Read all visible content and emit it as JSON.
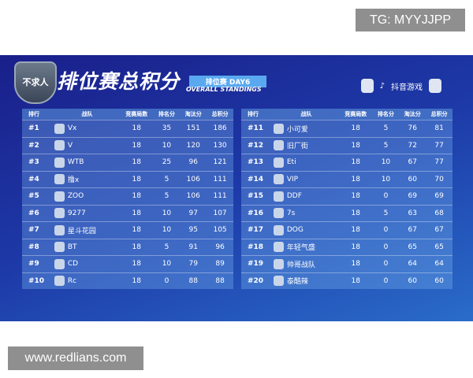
{
  "watermark_top": "TG: MYYJJPP",
  "watermark_bottom": "www.redlians.com",
  "header": {
    "logo_text": "不求人",
    "title": "排位赛总积分",
    "day_label": "排位赛 DAY6",
    "subtitle": "OVERALL STANDINGS",
    "sponsor": "抖音游戏"
  },
  "columns": [
    "排行",
    "战队",
    "竞赛局数",
    "排名分",
    "淘汰分",
    "总积分"
  ],
  "left": [
    [
      "#1",
      "Vx",
      "18",
      "35",
      "151",
      "186"
    ],
    [
      "#2",
      "V",
      "18",
      "10",
      "120",
      "130"
    ],
    [
      "#3",
      "WTB",
      "18",
      "25",
      "96",
      "121"
    ],
    [
      "#4",
      "撸x",
      "18",
      "5",
      "106",
      "111"
    ],
    [
      "#5",
      "ZOO",
      "18",
      "5",
      "106",
      "111"
    ],
    [
      "#6",
      "9277",
      "18",
      "10",
      "97",
      "107"
    ],
    [
      "#7",
      "星斗花园",
      "18",
      "10",
      "95",
      "105"
    ],
    [
      "#8",
      "BT",
      "18",
      "5",
      "91",
      "96"
    ],
    [
      "#9",
      "CD",
      "18",
      "10",
      "79",
      "89"
    ],
    [
      "#10",
      "Rc",
      "18",
      "0",
      "88",
      "88"
    ]
  ],
  "right": [
    [
      "#11",
      "小可爱",
      "18",
      "5",
      "76",
      "81"
    ],
    [
      "#12",
      "旧厂街",
      "18",
      "5",
      "72",
      "77"
    ],
    [
      "#13",
      "Eti",
      "18",
      "10",
      "67",
      "77"
    ],
    [
      "#14",
      "VIP",
      "18",
      "10",
      "60",
      "70"
    ],
    [
      "#15",
      "DDF",
      "18",
      "0",
      "69",
      "69"
    ],
    [
      "#16",
      "7s",
      "18",
      "5",
      "63",
      "68"
    ],
    [
      "#17",
      "DOG",
      "18",
      "0",
      "67",
      "67"
    ],
    [
      "#18",
      "年轻气盛",
      "18",
      "0",
      "65",
      "65"
    ],
    [
      "#19",
      "帅哥战队",
      "18",
      "0",
      "64",
      "64"
    ],
    [
      "#20",
      "泰酷辣",
      "18",
      "0",
      "60",
      "60"
    ]
  ]
}
